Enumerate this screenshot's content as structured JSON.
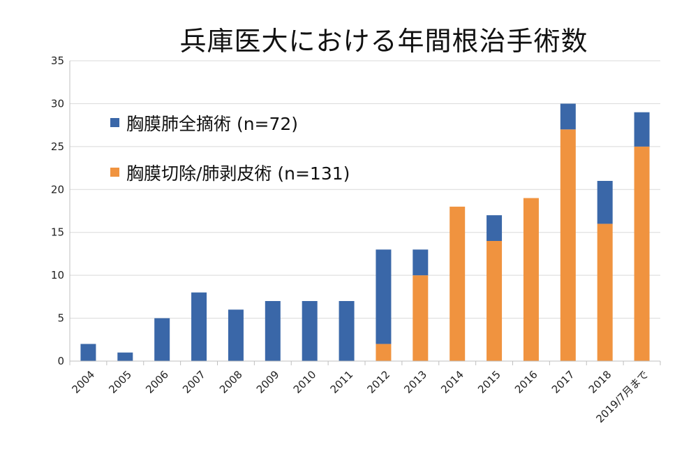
{
  "chart_data": {
    "type": "bar",
    "stacked": true,
    "title": "兵庫医大における年間根治手術数",
    "categories": [
      "2004",
      "2005",
      "2006",
      "2007",
      "2008",
      "2009",
      "2010",
      "2011",
      "2012",
      "2013",
      "2014",
      "2015",
      "2016",
      "2017",
      "2018",
      "2019/7月まで"
    ],
    "series": [
      {
        "name": "胸膜切除/肺剥皮術 (n=131)",
        "color": "#F0933F",
        "values": [
          0,
          0,
          0,
          0,
          0,
          0,
          0,
          0,
          2,
          10,
          18,
          14,
          19,
          27,
          16,
          25
        ]
      },
      {
        "name": "胸膜肺全摘術 (n=72)",
        "color": "#3A67A8",
        "values": [
          2,
          1,
          5,
          8,
          6,
          7,
          7,
          7,
          11,
          3,
          0,
          3,
          0,
          3,
          5,
          4
        ]
      }
    ],
    "legend_order": [
      1,
      0
    ],
    "legend_position": "upper-left",
    "ylim": [
      0,
      35
    ],
    "yticks": [
      0,
      5,
      10,
      15,
      20,
      25,
      30,
      35
    ],
    "grid": true,
    "xlabel": "",
    "ylabel": ""
  }
}
